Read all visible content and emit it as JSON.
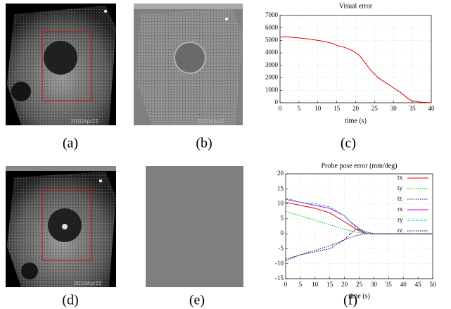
{
  "panel_labels": [
    "(a)",
    "(b)",
    "(c)",
    "(d)",
    "(e)",
    "(f)"
  ],
  "images": [
    {
      "stamp": "2010Apr22"
    },
    {
      "stamp": "2010Apr22"
    },
    {
      "stamp": "2010Apr22"
    }
  ],
  "chart_data": [
    {
      "type": "line",
      "title": "Visual error",
      "x_label": "time (s)",
      "x": [
        0,
        1,
        2,
        5,
        8,
        10,
        12,
        14,
        15,
        17,
        19,
        21,
        22,
        23,
        24,
        25,
        26,
        28,
        30,
        32,
        34,
        35,
        37,
        40
      ],
      "series": [
        {
          "color": "#e00000",
          "style": "solid",
          "values": [
            5250,
            5300,
            5280,
            5200,
            5100,
            5000,
            4900,
            4750,
            4600,
            4450,
            4200,
            3800,
            3400,
            3000,
            2600,
            2300,
            2000,
            1600,
            1200,
            800,
            300,
            150,
            50,
            0
          ]
        }
      ],
      "xlim": [
        0,
        40
      ],
      "xticks": [
        0,
        5,
        10,
        15,
        20,
        25,
        30,
        35,
        40
      ],
      "ylim": [
        0,
        7000
      ],
      "yticks": [
        0,
        1000,
        2000,
        3000,
        4000,
        5000,
        6000,
        7000
      ],
      "grid": true
    },
    {
      "type": "line",
      "title": "Probe pose error (mm/deg)",
      "x_label": "time (s)",
      "x": [
        0,
        5,
        10,
        15,
        20,
        22,
        24,
        26,
        28,
        30,
        35,
        40,
        45,
        50
      ],
      "series": [
        {
          "name": "tx",
          "color": "#e00000",
          "style": "solid",
          "values": [
            10.5,
            9.5,
            8.5,
            7,
            4,
            2.8,
            1.5,
            0.5,
            0,
            0,
            0,
            0,
            0,
            0
          ]
        },
        {
          "name": "ty",
          "color": "#00c000",
          "style": "dotted",
          "values": [
            7.5,
            6,
            4.5,
            3,
            1.5,
            1,
            0.5,
            0.2,
            0,
            0,
            0,
            0,
            0,
            0
          ]
        },
        {
          "name": "tz",
          "color": "#0000c0",
          "style": "dotted",
          "values": [
            -8.5,
            -7,
            -5.5,
            -4,
            -2,
            -1.2,
            -0.6,
            -0.2,
            0,
            0,
            0,
            0,
            0,
            0
          ]
        },
        {
          "name": "rx",
          "color": "#e000e0",
          "style": "solid",
          "values": [
            11.5,
            10.5,
            9.5,
            8.5,
            6,
            4,
            2.5,
            1,
            0,
            0,
            0,
            0,
            0,
            0
          ]
        },
        {
          "name": "ry",
          "color": "#00c0c0",
          "style": "dashed",
          "values": [
            12,
            10.5,
            10,
            9,
            6,
            4,
            2,
            0.8,
            0,
            0,
            0,
            0,
            0,
            0
          ]
        },
        {
          "name": "rz",
          "color": "#000000",
          "style": "dotted",
          "values": [
            -9,
            -7,
            -6,
            -5,
            -2,
            0,
            1.5,
            1.2,
            0.5,
            0,
            0,
            0,
            0,
            0
          ]
        }
      ],
      "xlim": [
        0,
        50
      ],
      "xticks": [
        0,
        5,
        10,
        15,
        20,
        25,
        30,
        35,
        40,
        45,
        50
      ],
      "ylim": [
        -15,
        20
      ],
      "yticks": [
        -15,
        -10,
        -5,
        0,
        5,
        10,
        15,
        20
      ],
      "grid": true,
      "legend": "upper right"
    }
  ]
}
